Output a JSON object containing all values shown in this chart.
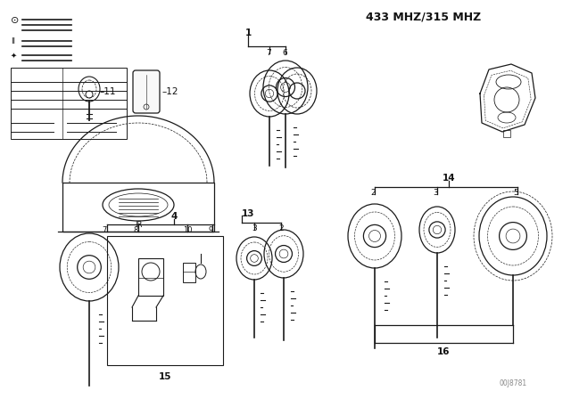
{
  "freq_label": "433 MHZ/315 MHZ",
  "diagram_note": "00J8781",
  "line_color": "#1a1a1a",
  "text_color": "#111111",
  "gray_color": "#888888",
  "lw": 0.9
}
